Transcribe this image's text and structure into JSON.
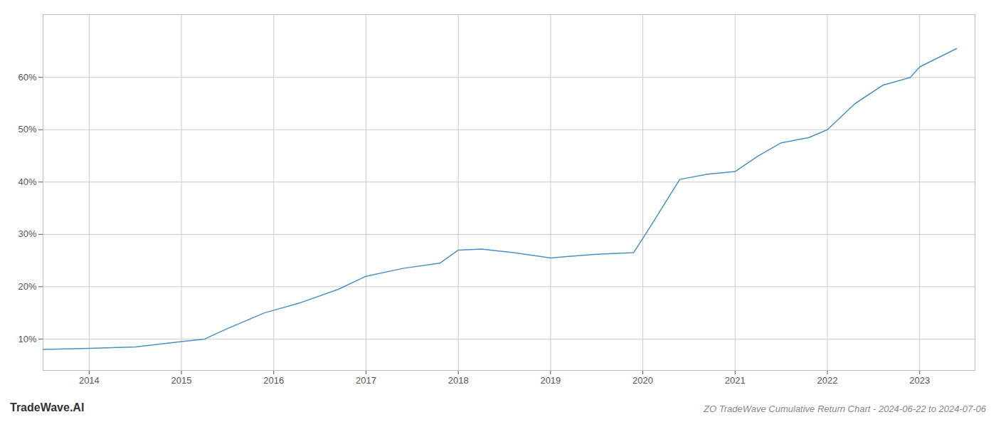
{
  "chart_data": {
    "type": "line",
    "title": "ZO TradeWave Cumulative Return Chart - 2024-06-22 to 2024-07-06",
    "annotations": [
      "TradeWave.AI"
    ],
    "x": [
      2013.5,
      2014.0,
      2014.5,
      2015.0,
      2015.25,
      2015.5,
      2015.9,
      2016.3,
      2016.7,
      2017.0,
      2017.4,
      2017.8,
      2018.0,
      2018.25,
      2018.6,
      2019.0,
      2019.2,
      2019.5,
      2019.9,
      2020.1,
      2020.4,
      2020.7,
      2021.0,
      2021.25,
      2021.5,
      2021.8,
      2022.0,
      2022.3,
      2022.6,
      2022.9,
      2023.0,
      2023.4
    ],
    "values": [
      8.0,
      8.2,
      8.5,
      9.5,
      10.0,
      12.0,
      15.0,
      17.0,
      19.5,
      22.0,
      23.5,
      24.5,
      27.0,
      27.2,
      26.5,
      25.5,
      25.8,
      26.2,
      26.5,
      32.0,
      40.5,
      41.5,
      42.0,
      45.0,
      47.5,
      48.5,
      50.0,
      55.0,
      58.5,
      60.0,
      62.0,
      65.5
    ],
    "color": "#4a90c4",
    "xlim": [
      2013.5,
      2023.6
    ],
    "xticks": [
      2014,
      2015,
      2016,
      2017,
      2018,
      2019,
      2020,
      2021,
      2022,
      2023
    ],
    "ylim": [
      4,
      72
    ],
    "yticks": [
      {
        "value": 10,
        "label": "10%"
      },
      {
        "value": 20,
        "label": "20%"
      },
      {
        "value": 30,
        "label": "30%"
      },
      {
        "value": 40,
        "label": "40%"
      },
      {
        "value": 50,
        "label": "50%"
      },
      {
        "value": 60,
        "label": "60%"
      }
    ],
    "grid": true
  }
}
